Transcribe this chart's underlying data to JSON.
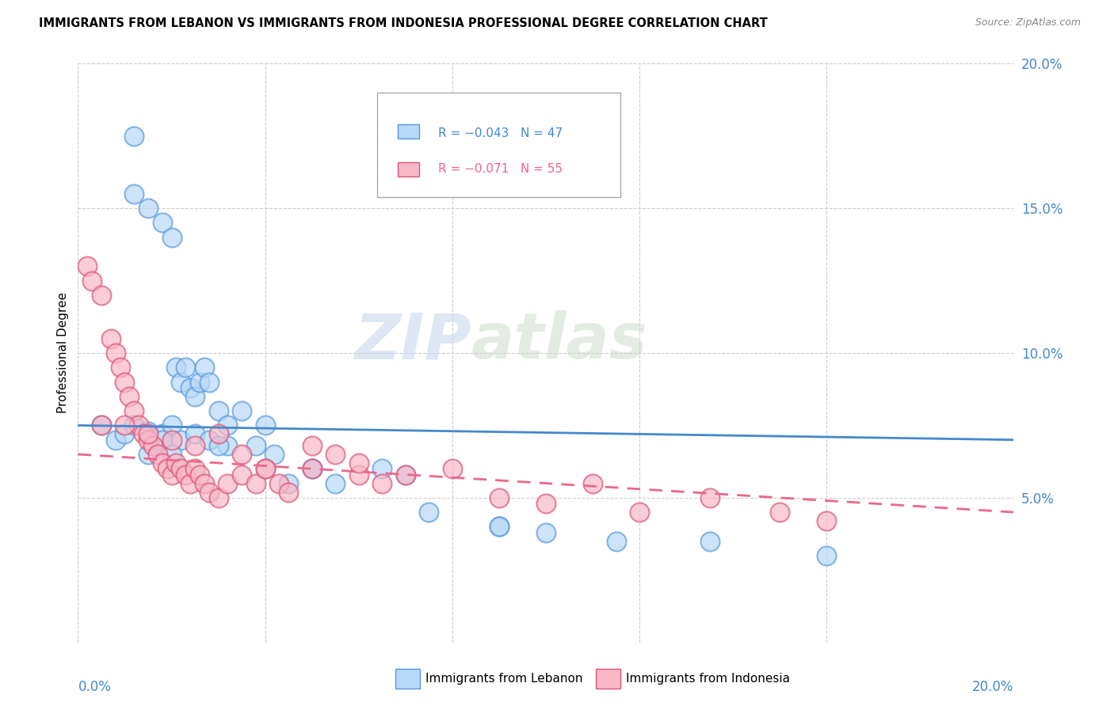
{
  "title": "IMMIGRANTS FROM LEBANON VS IMMIGRANTS FROM INDONESIA PROFESSIONAL DEGREE CORRELATION CHART",
  "source": "Source: ZipAtlas.com",
  "ylabel": "Professional Degree",
  "xmin": 0.0,
  "xmax": 0.2,
  "ymin": 0.0,
  "ymax": 0.2,
  "yticks": [
    0.05,
    0.1,
    0.15,
    0.2
  ],
  "ytick_labels": [
    "5.0%",
    "10.0%",
    "15.0%",
    "20.0%"
  ],
  "xtick_left": "0.0%",
  "xtick_right": "20.0%",
  "legend_R1": "R = −0.043",
  "legend_N1": "N = 47",
  "legend_R2": "R = −0.071",
  "legend_N2": "N = 55",
  "color_lebanon_fill": "#b8d8f8",
  "color_lebanon_edge": "#5599dd",
  "color_indonesia_fill": "#f8b8c8",
  "color_indonesia_edge": "#dd5577",
  "color_line_lebanon": "#4488cc",
  "color_line_indonesia": "#ee6688",
  "watermark_color": "#d0dff0",
  "legend_label1": "Immigrants from Lebanon",
  "legend_label2": "Immigrants from Indonesia",
  "lebanon_x": [
    0.012,
    0.012,
    0.015,
    0.018,
    0.02,
    0.021,
    0.022,
    0.023,
    0.024,
    0.025,
    0.026,
    0.027,
    0.028,
    0.03,
    0.032,
    0.035,
    0.04,
    0.045,
    0.005,
    0.008,
    0.01,
    0.012,
    0.015,
    0.018,
    0.02,
    0.022,
    0.025,
    0.028,
    0.032,
    0.038,
    0.042,
    0.05,
    0.055,
    0.065,
    0.075,
    0.09,
    0.1,
    0.115,
    0.015,
    0.018,
    0.02,
    0.03,
    0.05,
    0.07,
    0.09,
    0.135,
    0.16
  ],
  "lebanon_y": [
    0.155,
    0.175,
    0.15,
    0.145,
    0.14,
    0.095,
    0.09,
    0.095,
    0.088,
    0.085,
    0.09,
    0.095,
    0.09,
    0.08,
    0.075,
    0.08,
    0.075,
    0.055,
    0.075,
    0.07,
    0.072,
    0.075,
    0.073,
    0.072,
    0.075,
    0.07,
    0.072,
    0.07,
    0.068,
    0.068,
    0.065,
    0.06,
    0.055,
    0.06,
    0.045,
    0.04,
    0.038,
    0.035,
    0.065,
    0.07,
    0.065,
    0.068,
    0.06,
    0.058,
    0.04,
    0.035,
    0.03
  ],
  "indonesia_x": [
    0.002,
    0.003,
    0.005,
    0.007,
    0.008,
    0.009,
    0.01,
    0.011,
    0.012,
    0.013,
    0.014,
    0.015,
    0.016,
    0.017,
    0.018,
    0.019,
    0.02,
    0.021,
    0.022,
    0.023,
    0.024,
    0.025,
    0.026,
    0.027,
    0.028,
    0.03,
    0.032,
    0.035,
    0.038,
    0.04,
    0.043,
    0.045,
    0.05,
    0.055,
    0.06,
    0.065,
    0.005,
    0.01,
    0.015,
    0.02,
    0.025,
    0.03,
    0.035,
    0.04,
    0.05,
    0.06,
    0.07,
    0.08,
    0.09,
    0.1,
    0.11,
    0.12,
    0.135,
    0.15,
    0.16
  ],
  "indonesia_y": [
    0.13,
    0.125,
    0.12,
    0.105,
    0.1,
    0.095,
    0.09,
    0.085,
    0.08,
    0.075,
    0.072,
    0.07,
    0.068,
    0.065,
    0.062,
    0.06,
    0.058,
    0.062,
    0.06,
    0.058,
    0.055,
    0.06,
    0.058,
    0.055,
    0.052,
    0.05,
    0.055,
    0.058,
    0.055,
    0.06,
    0.055,
    0.052,
    0.06,
    0.065,
    0.058,
    0.055,
    0.075,
    0.075,
    0.072,
    0.07,
    0.068,
    0.072,
    0.065,
    0.06,
    0.068,
    0.062,
    0.058,
    0.06,
    0.05,
    0.048,
    0.055,
    0.045,
    0.05,
    0.045,
    0.042
  ]
}
